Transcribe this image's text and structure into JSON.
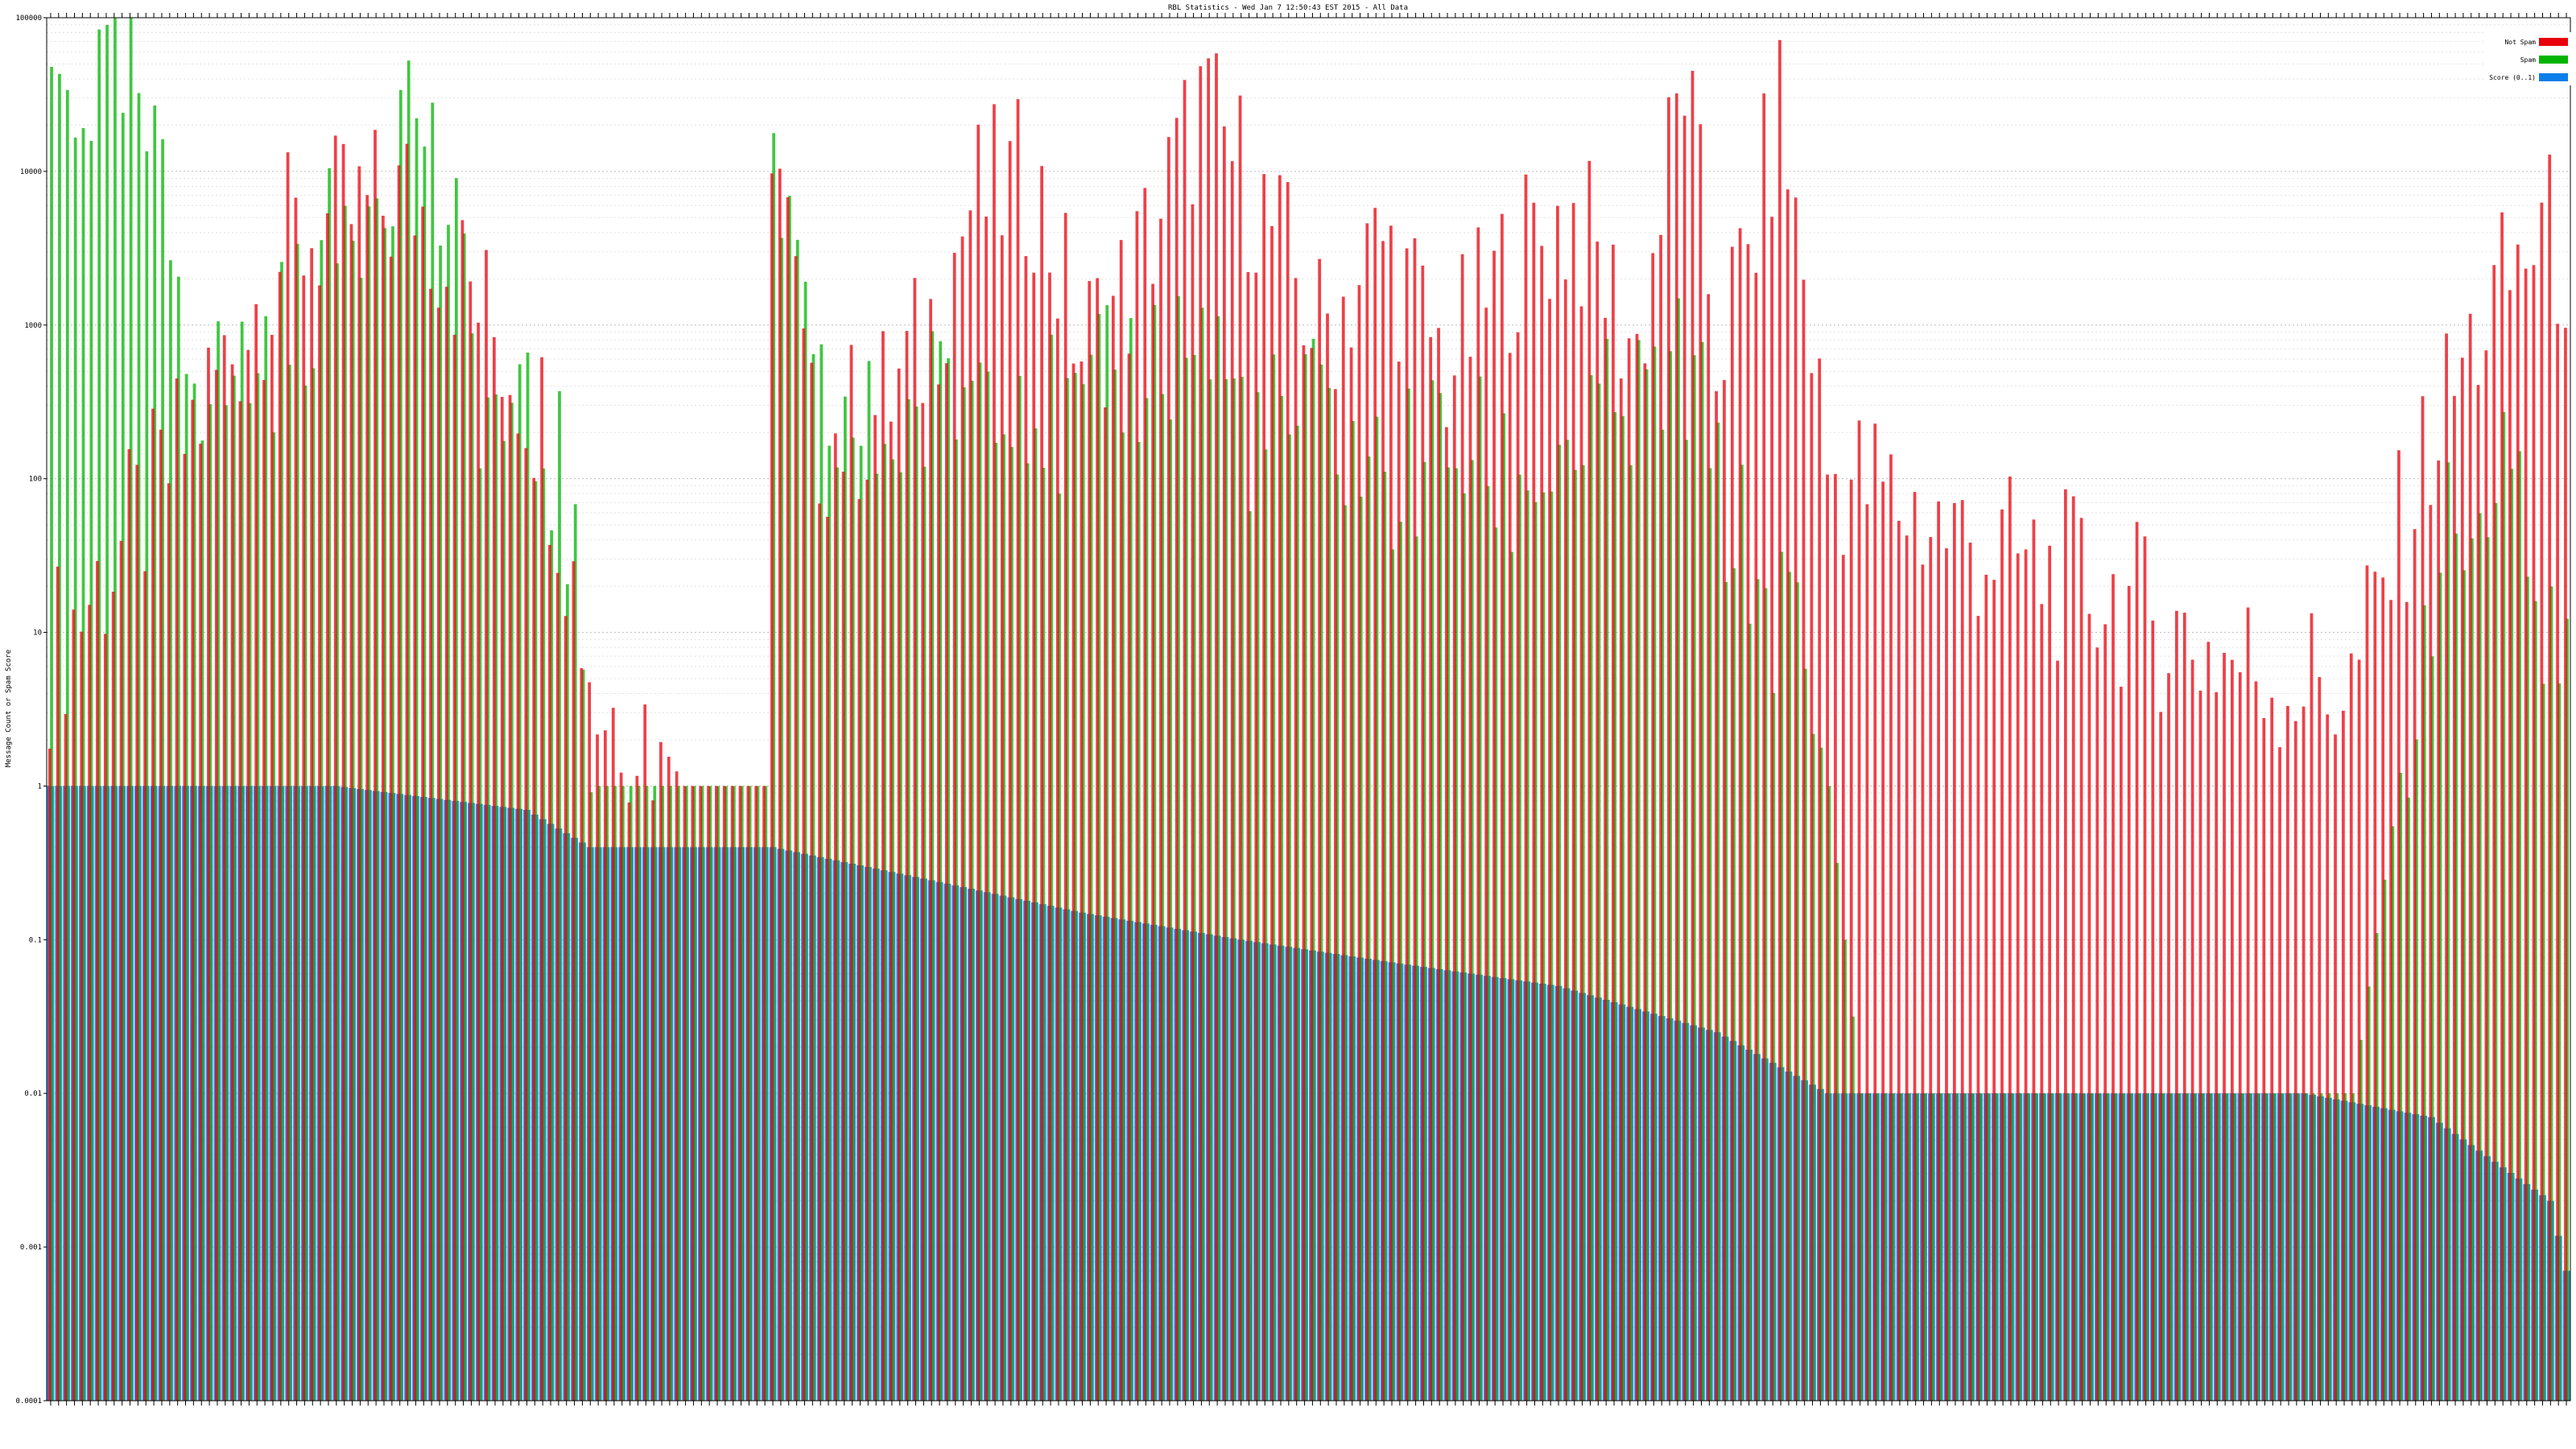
{
  "chart_data": {
    "type": "bar",
    "title": "RBL Statistics - Wed Jan  7 12:50:43 EST 2015 - All Data",
    "ylabel": "Message Count or Spam Score",
    "yscale": "log",
    "ylim": [
      0.0001,
      100000
    ],
    "yticks": [
      "0.0001",
      "0.001",
      "0.01",
      "0.1",
      "1",
      "10",
      "100",
      "1000",
      "10000",
      "100000"
    ],
    "grid": true,
    "legend_position": "top-right",
    "series": [
      {
        "name": "Not Spam",
        "color": "#e8000b"
      },
      {
        "name": "Spam",
        "color": "#00b400"
      },
      {
        "name": "Score (0..1)",
        "color": "#0a7ee8"
      }
    ],
    "category_count": 318,
    "not_spam_envelope": [
      [
        0,
        8
      ],
      [
        14,
        100
      ],
      [
        30,
        4000
      ],
      [
        46,
        8000
      ],
      [
        62,
        300
      ],
      [
        69,
        4
      ],
      [
        75,
        3
      ],
      [
        80,
        1
      ],
      [
        90,
        1
      ],
      [
        91,
        30000
      ],
      [
        96,
        200
      ],
      [
        104,
        300
      ],
      [
        110,
        800
      ],
      [
        116,
        7000
      ],
      [
        124,
        10000
      ],
      [
        130,
        800
      ],
      [
        136,
        2000
      ],
      [
        145,
        30000
      ],
      [
        152,
        8000
      ],
      [
        160,
        1000
      ],
      [
        168,
        4000
      ],
      [
        176,
        600
      ],
      [
        184,
        3000
      ],
      [
        192,
        6000
      ],
      [
        200,
        800
      ],
      [
        206,
        50000
      ],
      [
        210,
        800
      ],
      [
        214,
        3000
      ],
      [
        218,
        30000
      ],
      [
        222,
        1000
      ],
      [
        224,
        130
      ],
      [
        230,
        100
      ],
      [
        240,
        50
      ],
      [
        250,
        30
      ],
      [
        260,
        20
      ],
      [
        270,
        10
      ],
      [
        280,
        6
      ],
      [
        290,
        5
      ],
      [
        300,
        200
      ],
      [
        306,
        1000
      ],
      [
        314,
        5000
      ],
      [
        317,
        3000
      ]
    ],
    "spam_envelope": [
      [
        0,
        40000
      ],
      [
        10,
        40000
      ],
      [
        20,
        400
      ],
      [
        30,
        1000
      ],
      [
        46,
        40000
      ],
      [
        55,
        300
      ],
      [
        64,
        150
      ],
      [
        69,
        1
      ],
      [
        82,
        1
      ],
      [
        90,
        1
      ],
      [
        91,
        20000
      ],
      [
        96,
        300
      ],
      [
        104,
        200
      ],
      [
        110,
        300
      ],
      [
        120,
        800
      ],
      [
        128,
        200
      ],
      [
        136,
        600
      ],
      [
        145,
        1000
      ],
      [
        152,
        200
      ],
      [
        160,
        300
      ],
      [
        168,
        100
      ],
      [
        176,
        200
      ],
      [
        184,
        100
      ],
      [
        192,
        200
      ],
      [
        200,
        300
      ],
      [
        206,
        600
      ],
      [
        210,
        100
      ],
      [
        214,
        30
      ],
      [
        220,
        10
      ],
      [
        224,
        1
      ],
      [
        228,
        0.01
      ],
      [
        290,
        0.01
      ],
      [
        300,
        30
      ],
      [
        310,
        100
      ],
      [
        315,
        10
      ],
      [
        317,
        10
      ]
    ],
    "score_envelope": [
      [
        0,
        1
      ],
      [
        36,
        1
      ],
      [
        60,
        0.7
      ],
      [
        68,
        0.4
      ],
      [
        91,
        0.4
      ],
      [
        110,
        0.25
      ],
      [
        130,
        0.15
      ],
      [
        150,
        0.1
      ],
      [
        170,
        0.07
      ],
      [
        190,
        0.05
      ],
      [
        210,
        0.025
      ],
      [
        224,
        0.01
      ],
      [
        284,
        0.01
      ],
      [
        300,
        0.007
      ],
      [
        315,
        0.002
      ],
      [
        317,
        0.0007
      ]
    ]
  }
}
